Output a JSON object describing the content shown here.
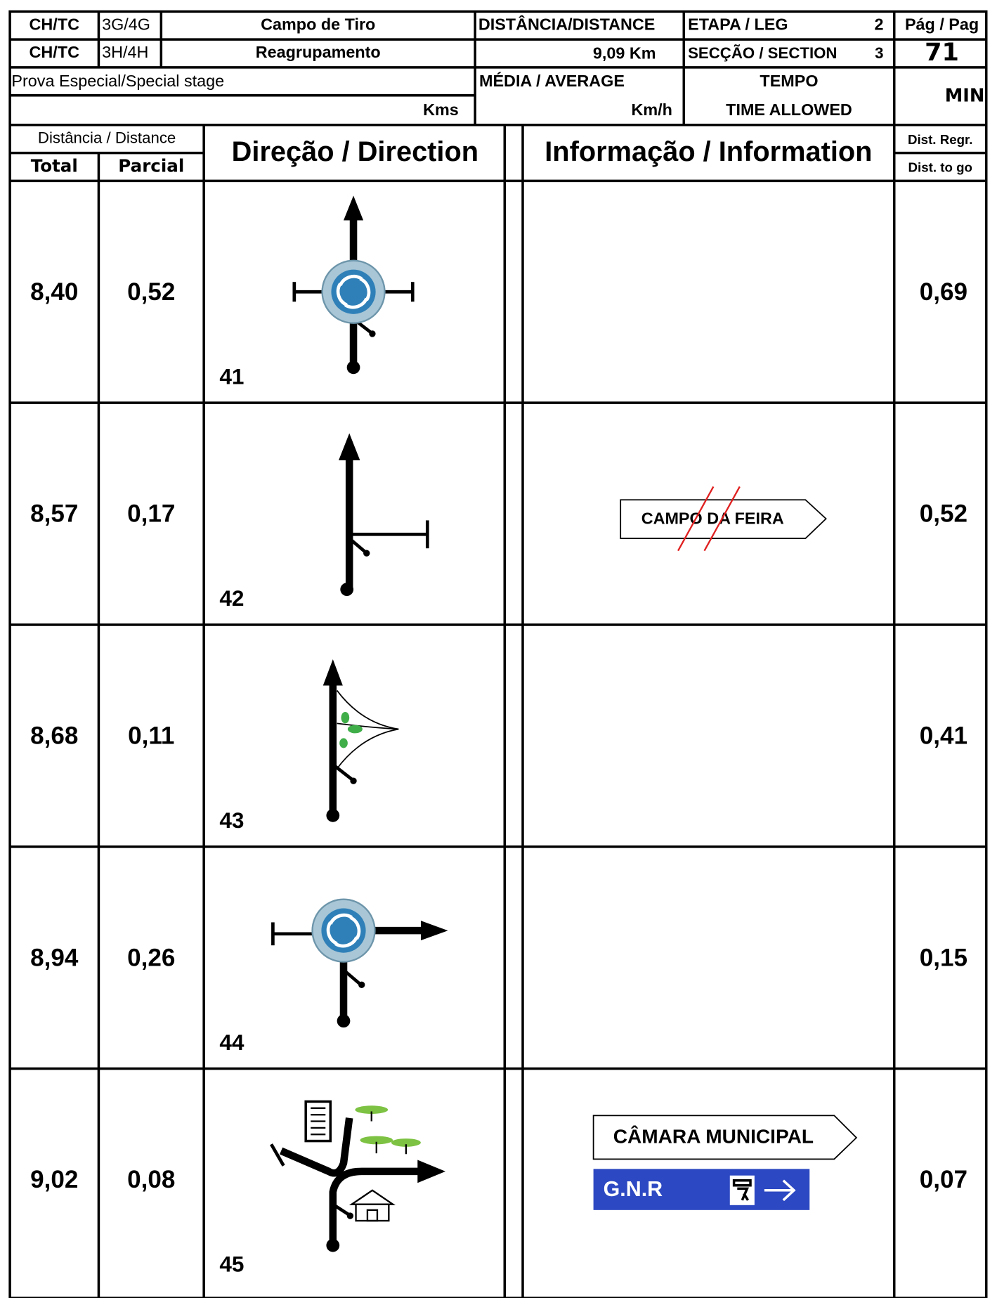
{
  "header": {
    "ch_tc_1": "CH/TC",
    "code_1": "3G/4G",
    "name_1": "Campo de Tiro",
    "ch_tc_2": "CH/TC",
    "code_2": "3H/4H",
    "name_2": "Reagrupamento",
    "distance_label": "DISTÂNCIA/DISTANCE",
    "distance_value": "9,09 Km",
    "leg_label": "ETAPA / LEG",
    "leg": "2",
    "section_label": "SECÇÃO / SECTION",
    "section": "3",
    "page_label": "Pág / Pag",
    "page": "71",
    "special_stage_label": "Prova Especial/Special stage",
    "kms": "Kms",
    "average_label": "MÉDIA / AVERAGE",
    "kmh": "Km/h",
    "time_label_1": "TEMPO",
    "time_label_2": "TIME ALLOWED",
    "time_unit": "MIN"
  },
  "columns": {
    "distance": "Distância / Distance",
    "total": "Total",
    "partial": "Parcial",
    "direction": "Direção / Direction",
    "information": "Informação / Information",
    "dist_to_go_1": "Dist. Regr.",
    "dist_to_go_2": "Dist. to go"
  },
  "rows": [
    {
      "number": "41",
      "total": "8,40",
      "partial": "0,52",
      "dist_to_go": "0,69"
    },
    {
      "number": "42",
      "total": "8,57",
      "partial": "0,17",
      "dist_to_go": "0,52",
      "sign": "CAMPO DA FEIRA"
    },
    {
      "number": "43",
      "total": "8,68",
      "partial": "0,11",
      "dist_to_go": "0,41"
    },
    {
      "number": "44",
      "total": "8,94",
      "partial": "0,26",
      "dist_to_go": "0,15"
    },
    {
      "number": "45",
      "total": "9,02",
      "partial": "0,08",
      "dist_to_go": "0,07",
      "sign": "CÂMARA MUNICIPAL",
      "sign_2": "G.N.R"
    }
  ]
}
